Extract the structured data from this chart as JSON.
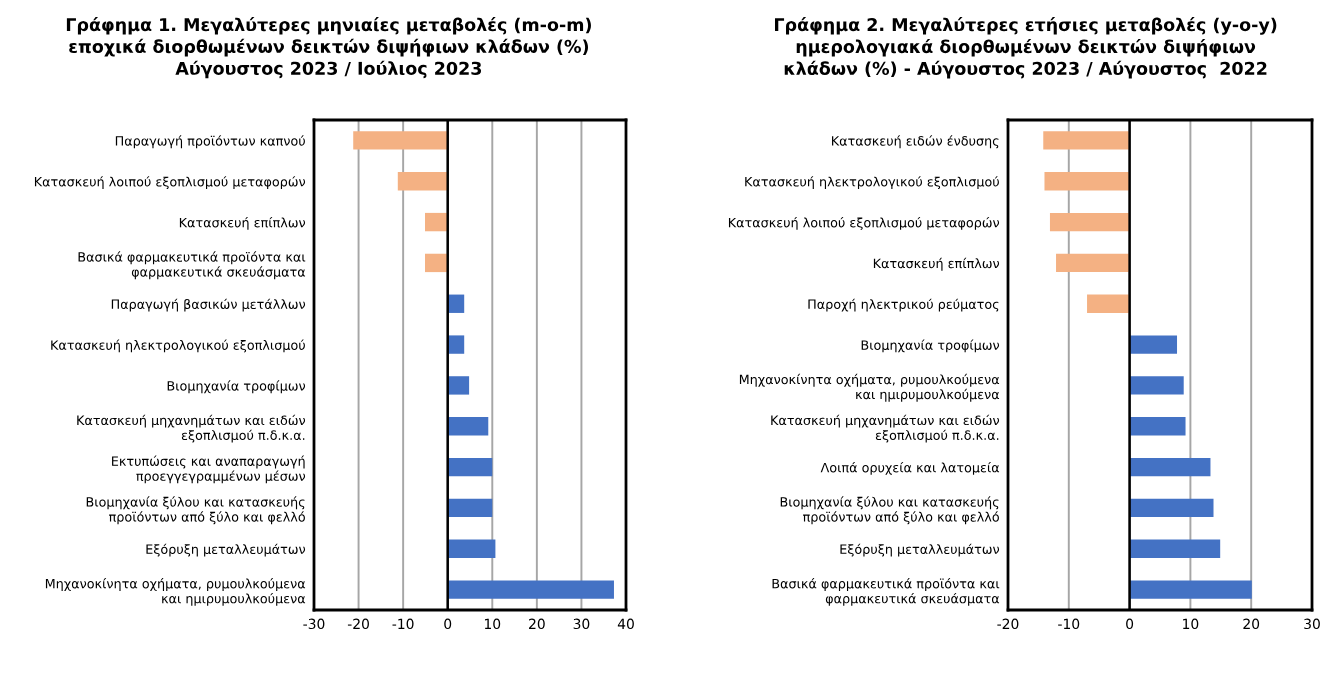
{
  "chart_data": [
    {
      "type": "bar",
      "orientation": "horizontal",
      "title": "Γράφημα 1. Μεγαλύτερες μηνιαίες μεταβολές (m-o-m)\nεποχικά διορθωμένων δεικτών διψήφιων κλάδων (%)\nΑύγουστος 2023 / Ιούλιος 2023",
      "categories": [
        "Παραγωγή προϊόντων καπνού",
        "Κατασκευή λοιπού εξοπλισμού μεταφορών",
        "Κατασκευή επίπλων",
        "Βασικά φαρμακευτικά προϊόντα και\nφαρμακευτικά σκευάσματα",
        "Παραγωγή βασικών μετάλλων",
        "Κατασκευή ηλεκτρολογικού εξοπλισμού",
        "Βιομηχανία τροφίμων",
        "Κατασκευή μηχανημάτων και ειδών\nεξοπλισμού π.δ.κ.α.",
        "Εκτυπώσεις και αναπαραγωγή\nπροεγγεγραμμένων μέσων",
        "Βιομηχανία ξύλου και κατασκευής\nπροϊόντων από ξύλο και φελλό",
        "Εξόρυξη μεταλλευμάτων",
        "Μηχανοκίνητα οχήματα, ρυμουλκούμενα\nκαι ημιρυμουλκούμενα"
      ],
      "values": [
        -21.2,
        -11.2,
        -5.1,
        -5.1,
        3.7,
        3.7,
        4.8,
        9.1,
        10.0,
        10.0,
        10.7,
        37.3
      ],
      "colors": [
        "#f4b183",
        "#f4b183",
        "#f4b183",
        "#f4b183",
        "#4472c4",
        "#4472c4",
        "#4472c4",
        "#4472c4",
        "#4472c4",
        "#4472c4",
        "#4472c4",
        "#4472c4"
      ],
      "xlim": [
        -30,
        40
      ],
      "xticks": [
        -30,
        -20,
        -10,
        0,
        10,
        20,
        30,
        40
      ],
      "grid": "x",
      "legend": false
    },
    {
      "type": "bar",
      "orientation": "horizontal",
      "title": "Γράφημα 2. Μεγαλύτερες ετήσιες μεταβολές (y-o-y)\nημερολογιακά διορθωμένων δεικτών διψήφιων\nκλάδων (%) - Αύγουστος 2023 / Αύγουστος  2022",
      "categories": [
        "Κατασκευή ειδών ένδυσης",
        "Κατασκευή ηλεκτρολογικού εξοπλισμού",
        "Κατασκευή λοιπού εξοπλισμού μεταφορών",
        "Κατασκευή επίπλων",
        "Παροχή ηλεκτρικού ρεύματος",
        "Βιομηχανία τροφίμων",
        "Μηχανοκίνητα οχήματα, ρυμουλκούμενα\nκαι ημιρυμουλκούμενα",
        "Κατασκευή μηχανημάτων και ειδών\nεξοπλισμού π.δ.κ.α.",
        "Λοιπά ορυχεία και λατομεία",
        "Βιομηχανία ξύλου και κατασκευής\nπροϊόντων από ξύλο και φελλό",
        "Εξόρυξη μεταλλευμάτων",
        "Βασικά φαρμακευτικά προϊόντα και\nφαρμακευτικά σκευάσματα"
      ],
      "values": [
        -14.2,
        -14.0,
        -13.1,
        -12.1,
        -7.0,
        7.8,
        8.9,
        9.2,
        13.3,
        13.8,
        14.9,
        20.1
      ],
      "colors": [
        "#f4b183",
        "#f4b183",
        "#f4b183",
        "#f4b183",
        "#f4b183",
        "#4472c4",
        "#4472c4",
        "#4472c4",
        "#4472c4",
        "#4472c4",
        "#4472c4",
        "#4472c4"
      ],
      "xlim": [
        -20,
        30
      ],
      "xticks": [
        -20,
        -10,
        0,
        10,
        20,
        30
      ],
      "grid": "x",
      "legend": false
    }
  ]
}
